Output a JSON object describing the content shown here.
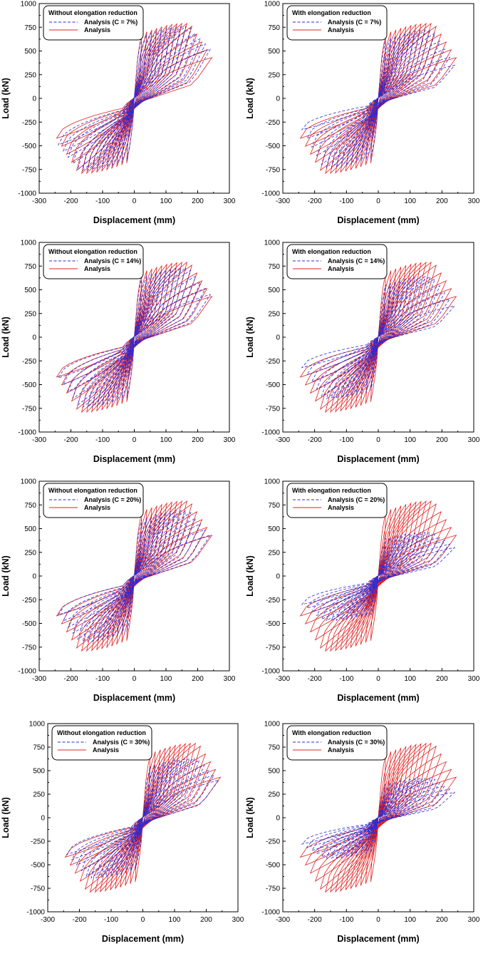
{
  "colors": {
    "analysis_c": "#2b2bd6",
    "analysis": "#e02020",
    "axis": "#000000"
  },
  "chart_data": [
    {
      "type": "line",
      "panel": "row1-left",
      "legend_title": "Without elongation reduction",
      "xlabel": "Displacement (mm)",
      "ylabel": "Load (kN)",
      "xlim": [
        -300,
        300
      ],
      "ylim": [
        -1000,
        1000
      ],
      "xticks": [
        "-300",
        "-200",
        "-100",
        "0",
        "100",
        "200",
        "300"
      ],
      "yticks": [
        "1000",
        "750",
        "500",
        "250",
        "0",
        "-250",
        "-500",
        "-750",
        "-1000"
      ],
      "series": [
        {
          "name": "Analysis (C = 7%)",
          "style": "dashed",
          "peak_pos": 760,
          "peak_neg": -760,
          "final_pos": 520,
          "final_neg": -470,
          "xmin": -245,
          "xmax": 240
        },
        {
          "name": "Analysis",
          "style": "solid",
          "peak_pos": 790,
          "peak_neg": -790,
          "final_pos": 430,
          "final_neg": -420,
          "xmin": -245,
          "xmax": 245
        }
      ]
    },
    {
      "type": "line",
      "panel": "row1-right",
      "legend_title": "With elongation reduction",
      "xlabel": "Displacement (mm)",
      "ylabel": "Load (kN)",
      "xlim": [
        -300,
        300
      ],
      "ylim": [
        -1000,
        1000
      ],
      "xticks": [
        "-300",
        "-200",
        "-100",
        "0",
        "100",
        "200",
        "300"
      ],
      "yticks": [
        "1000",
        "750",
        "500",
        "250",
        "0",
        "-250",
        "-500",
        "-750",
        "-1000"
      ],
      "series": [
        {
          "name": "Analysis (C = 7%)",
          "style": "dashed",
          "peak_pos": 720,
          "peak_neg": -730,
          "final_pos": 350,
          "final_neg": -330,
          "xmin": -240,
          "xmax": 240
        },
        {
          "name": "Analysis",
          "style": "solid",
          "peak_pos": 790,
          "peak_neg": -790,
          "final_pos": 430,
          "final_neg": -420,
          "xmin": -245,
          "xmax": 245
        }
      ]
    },
    {
      "type": "line",
      "panel": "row2-left",
      "legend_title": "Without elongation reduction",
      "xlabel": "Displacement (mm)",
      "ylabel": "Load (kN)",
      "xlim": [
        -300,
        300
      ],
      "ylim": [
        -1000,
        1000
      ],
      "xticks": [
        "-300",
        "-200",
        "-100",
        "0",
        "100",
        "200",
        "300"
      ],
      "yticks": [
        "1000",
        "750",
        "500",
        "250",
        "0",
        "-250",
        "-500",
        "-750",
        "-1000"
      ],
      "series": [
        {
          "name": "Analysis (C = 14%)",
          "style": "dashed",
          "peak_pos": 730,
          "peak_neg": -740,
          "final_pos": 450,
          "final_neg": -430,
          "xmin": -240,
          "xmax": 240
        },
        {
          "name": "Analysis",
          "style": "solid",
          "peak_pos": 790,
          "peak_neg": -790,
          "final_pos": 430,
          "final_neg": -420,
          "xmin": -245,
          "xmax": 245
        }
      ]
    },
    {
      "type": "line",
      "panel": "row2-right",
      "legend_title": "With elongation reduction",
      "xlabel": "Displacement (mm)",
      "ylabel": "Load (kN)",
      "xlim": [
        -300,
        300
      ],
      "ylim": [
        -1000,
        1000
      ],
      "xticks": [
        "-300",
        "-200",
        "-100",
        "0",
        "100",
        "200",
        "300"
      ],
      "yticks": [
        "1000",
        "750",
        "500",
        "250",
        "0",
        "-250",
        "-500",
        "-750",
        "-1000"
      ],
      "series": [
        {
          "name": "Analysis (C = 14%)",
          "style": "dashed",
          "peak_pos": 640,
          "peak_neg": -650,
          "final_pos": 330,
          "final_neg": -320,
          "xmin": -240,
          "xmax": 240
        },
        {
          "name": "Analysis",
          "style": "solid",
          "peak_pos": 790,
          "peak_neg": -790,
          "final_pos": 430,
          "final_neg": -420,
          "xmin": -245,
          "xmax": 245
        }
      ]
    },
    {
      "type": "line",
      "panel": "row3-left",
      "legend_title": "Without elongation reduction",
      "xlabel": "Displacement (mm)",
      "ylabel": "Load (kN)",
      "xlim": [
        -300,
        300
      ],
      "ylim": [
        -1000,
        1000
      ],
      "xticks": [
        "-300",
        "-200",
        "-100",
        "0",
        "100",
        "200",
        "300"
      ],
      "yticks": [
        "1000",
        "750",
        "500",
        "250",
        "0",
        "-250",
        "-500",
        "-750",
        "-1000"
      ],
      "series": [
        {
          "name": "Analysis (C = 20%)",
          "style": "dashed",
          "peak_pos": 690,
          "peak_neg": -690,
          "final_pos": 430,
          "final_neg": -410,
          "xmin": -240,
          "xmax": 240
        },
        {
          "name": "Analysis",
          "style": "solid",
          "peak_pos": 790,
          "peak_neg": -790,
          "final_pos": 430,
          "final_neg": -420,
          "xmin": -245,
          "xmax": 245
        }
      ]
    },
    {
      "type": "line",
      "panel": "row3-right",
      "legend_title": "With elongation reduction",
      "xlabel": "Displacement (mm)",
      "ylabel": "Load (kN)",
      "xlim": [
        -300,
        300
      ],
      "ylim": [
        -1000,
        1000
      ],
      "xticks": [
        "-300",
        "-200",
        "-100",
        "0",
        "100",
        "200",
        "300"
      ],
      "yticks": [
        "1000",
        "750",
        "500",
        "250",
        "0",
        "-250",
        "-500",
        "-750",
        "-1000"
      ],
      "series": [
        {
          "name": "Analysis (C = 20%)",
          "style": "dashed",
          "peak_pos": 460,
          "peak_neg": -470,
          "final_pos": 300,
          "final_neg": -300,
          "xmin": -240,
          "xmax": 240
        },
        {
          "name": "Analysis",
          "style": "solid",
          "peak_pos": 790,
          "peak_neg": -790,
          "final_pos": 430,
          "final_neg": -420,
          "xmin": -245,
          "xmax": 245
        }
      ]
    },
    {
      "type": "line",
      "panel": "row4-left",
      "legend_title": "Without elongation reduction",
      "xlabel": "Displacement (mm)",
      "ylabel": "Load (kN)",
      "xlim": [
        -300,
        300
      ],
      "ylim": [
        -1000,
        1000
      ],
      "xticks": [
        "-300",
        "-200",
        "-100",
        "0",
        "100",
        "200",
        "300"
      ],
      "yticks": [
        "1000",
        "750",
        "500",
        "250",
        "0",
        "-250",
        "-500",
        "-750",
        "-1000"
      ],
      "series": [
        {
          "name": "Analysis (C = 30%)",
          "style": "dashed",
          "peak_pos": 630,
          "peak_neg": -640,
          "final_pos": 400,
          "final_neg": -390,
          "xmin": -240,
          "xmax": 240
        },
        {
          "name": "Analysis",
          "style": "solid",
          "peak_pos": 790,
          "peak_neg": -790,
          "final_pos": 430,
          "final_neg": -420,
          "xmin": -245,
          "xmax": 245
        }
      ]
    },
    {
      "type": "line",
      "panel": "row4-right",
      "legend_title": "With elongation reduction",
      "xlabel": "Displacement (mm)",
      "ylabel": "Load (kN)",
      "xlim": [
        -300,
        300
      ],
      "ylim": [
        -1000,
        1000
      ],
      "xticks": [
        "-300",
        "-200",
        "-100",
        "0",
        "100",
        "200",
        "300"
      ],
      "yticks": [
        "1000",
        "750",
        "500",
        "250",
        "0",
        "-250",
        "-500",
        "-750",
        "-1000"
      ],
      "series": [
        {
          "name": "Analysis (C = 30%)",
          "style": "dashed",
          "peak_pos": 420,
          "peak_neg": -430,
          "final_pos": 270,
          "final_neg": -280,
          "xmin": -240,
          "xmax": 240
        },
        {
          "name": "Analysis",
          "style": "solid",
          "peak_pos": 790,
          "peak_neg": -790,
          "final_pos": 430,
          "final_neg": -420,
          "xmin": -245,
          "xmax": 245
        }
      ]
    }
  ]
}
